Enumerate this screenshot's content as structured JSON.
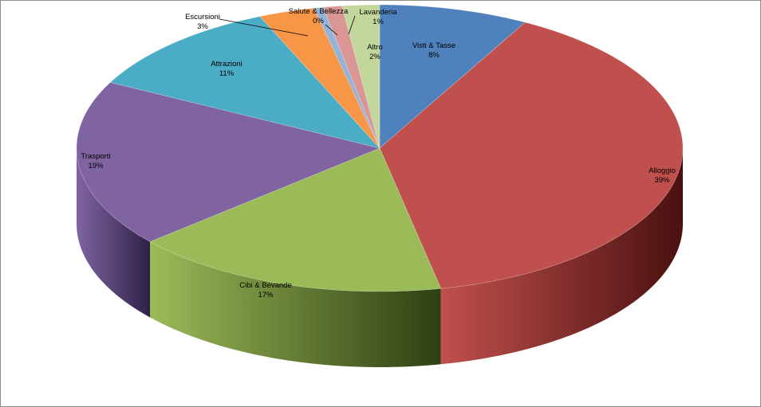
{
  "chart_data": {
    "type": "pie",
    "title": "",
    "style": "3d-exploded-tilted",
    "legend": "none",
    "slices": [
      {
        "label": "Visti & Tasse",
        "value": 8,
        "pct_text": "8%",
        "color": "#4F81BD",
        "dark": "#1f3a5c"
      },
      {
        "label": "Alloggio",
        "value": 39,
        "pct_text": "39%",
        "color": "#C0504D",
        "dark": "#4a1010"
      },
      {
        "label": "Cibi & Bevande",
        "value": 17,
        "pct_text": "17%",
        "color": "#9BBB59",
        "dark": "#2f3f12"
      },
      {
        "label": "Trasporti",
        "value": 19,
        "pct_text": "19%",
        "color": "#8064A2",
        "dark": "#2e2148"
      },
      {
        "label": "Attrazioni",
        "value": 11,
        "pct_text": "11%",
        "color": "#4BACC6",
        "dark": "#1a4a58"
      },
      {
        "label": "Escursioni",
        "value": 3,
        "pct_text": "3%",
        "color": "#F79646",
        "dark": "#7a3f10"
      },
      {
        "label": "Salute & Bellezza",
        "value": 0.5,
        "pct_text": "0%",
        "color": "#95B3D7",
        "dark": "#3b5070"
      },
      {
        "label": "Lavanderia",
        "value": 1,
        "pct_text": "1%",
        "color": "#D99694",
        "dark": "#6d3a39"
      },
      {
        "label": "Altro",
        "value": 2,
        "pct_text": "2%",
        "color": "#C3D69B",
        "dark": "#5a6b35"
      }
    ]
  }
}
